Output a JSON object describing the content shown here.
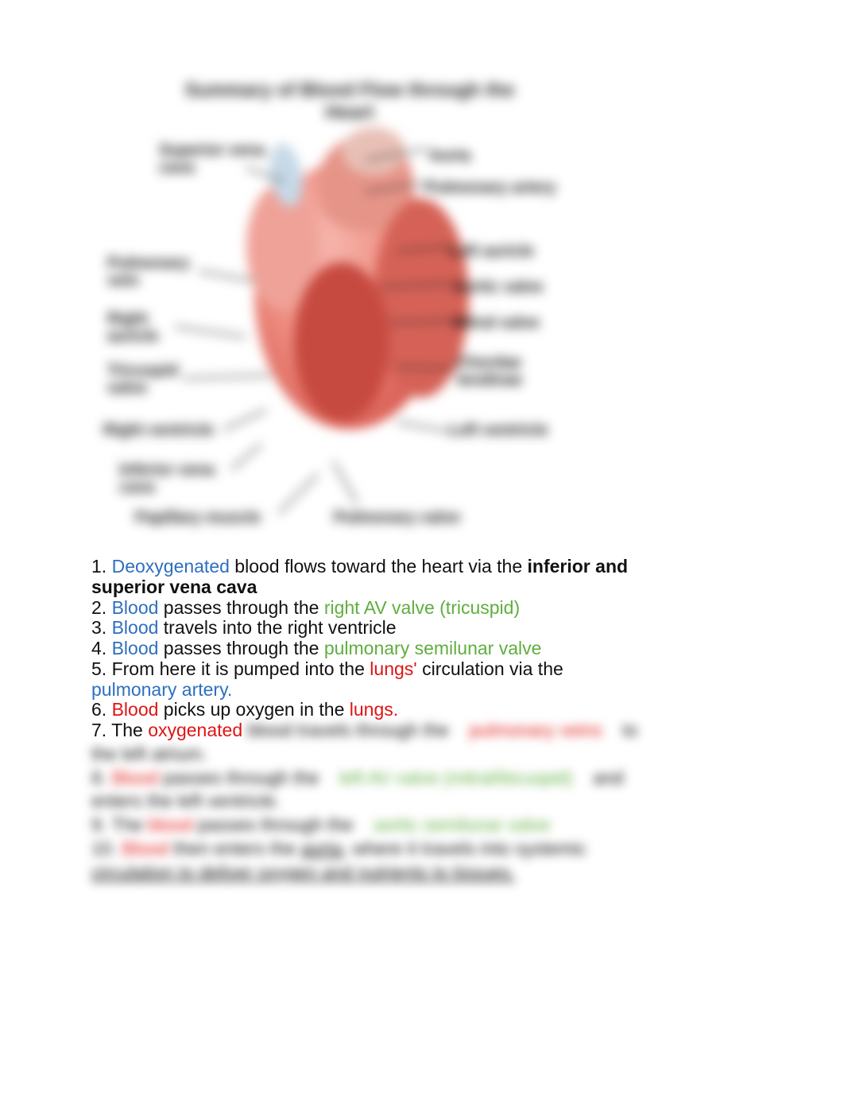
{
  "colors": {
    "blue": "#2d6fbf",
    "green": "#5fae3e",
    "red": "#e01414",
    "text": "#111111",
    "heart_light": "#f6b5ac",
    "heart_mid": "#ef8f83",
    "heart_dark": "#d85a50",
    "heart_deep": "#b93a31"
  },
  "diagram": {
    "title": "Summary of Blood Flow through the Heart",
    "labels": {
      "svc": "Superior vena\ncava",
      "aorta": "Aorta",
      "pulm_artery": "Pulmonary artery",
      "pulm_vein": "Pulmonary\nvein",
      "left_auricle": "Left auricle",
      "aortic_valve": "Aortic valve",
      "mitral_valve": "Mitral valve",
      "chordae": "Chordae\ntendinae",
      "right_auricle": "Right\nauricle",
      "tricuspid": "Tricuspid\nvalve",
      "right_ventricle": "Right ventricle",
      "left_ventricle": "Left ventricle",
      "ivc": "Inferior vena\ncava",
      "papillary": "Papillary muscle",
      "pulm_valve": "Pulmonary valve"
    }
  },
  "steps": {
    "s1_num": "1. ",
    "s1_a": "Deoxygenated",
    "s1_b": " blood flows toward the heart via the ",
    "s1_c": "inferior and superior vena cava",
    "s2_num": "2. ",
    "s2_a": "Blood",
    "s2_b": " passes through the ",
    "s2_c": "right AV valve (tricuspid)",
    "s3_num": "3. ",
    "s3_a": "Blood",
    "s3_b": " travels into the right ventricle",
    "s4_num": "4. ",
    "s4_a": "Blood",
    "s4_b": " passes through the ",
    "s4_c": "pulmonary semilunar valve",
    "s5_num": "5. ",
    "s5_a": "From here it is pumped into the ",
    "s5_b": "lungs'",
    "s5_c": " circulation via the ",
    "s5_d": "pulmonary artery.",
    "s6_num": "6. ",
    "s6_a": "Blood",
    "s6_b": " picks up oxygen in the ",
    "s6_c": "lungs.",
    "s7_num": "7. ",
    "s7_a": "The ",
    "s7_b": "oxygenated"
  },
  "tail": {
    "t7a": " blood travels through the ",
    "t7b": "pulmonary veins",
    "t7c": " to",
    "t7d": "the left atrium.",
    "t8a": "8. ",
    "t8b": "Blood",
    "t8c": " passes through the ",
    "t8d": "left AV valve (mitral/bicuspid)",
    "t8e": " and",
    "t8f": "enters the left ventricle.",
    "t9a": "9. The ",
    "t9b": "blood",
    "t9c": " passes through the ",
    "t9d": "aortic semilunar valve",
    "t10a": "10. ",
    "t10b": "Blood",
    "t10c": " then enters the ",
    "t10d": "aorta",
    "t10e": ", where it travels into systemic",
    "t10f": "circulation to deliver oxygen and nutrients to tissues."
  }
}
